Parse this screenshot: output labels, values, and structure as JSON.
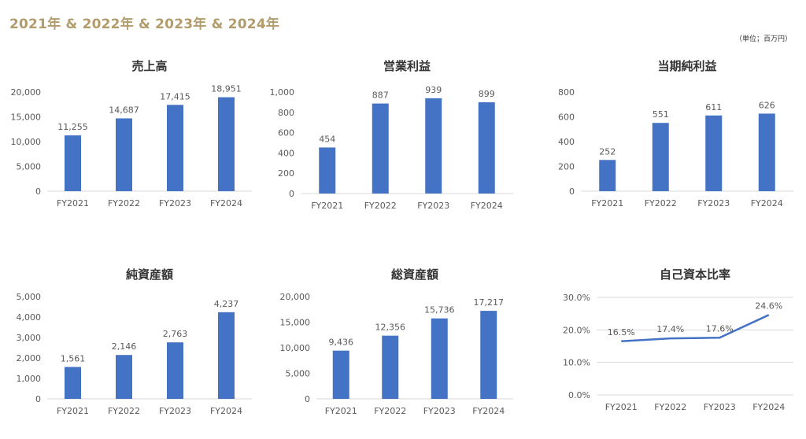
{
  "header": {
    "title": "2021年 & 2022年 & 2023年 & 2024年",
    "unit_note": "（単位；百万円）"
  },
  "colors": {
    "bar": "#4472c4",
    "text": "#595959",
    "grid": "#d9d9d9",
    "title": "#333333",
    "heading": "#b39c6b"
  },
  "chart_data": [
    {
      "type": "bar",
      "title": "売上高",
      "categories": [
        "FY2021",
        "FY2022",
        "FY2023",
        "FY2024"
      ],
      "values": [
        11255,
        14687,
        17415,
        18951
      ],
      "value_labels": [
        "11,255",
        "14,687",
        "17,415",
        "18,951"
      ],
      "ylim": [
        0,
        20000
      ],
      "yticks": [
        "0",
        "5,000",
        "10,000",
        "15,000",
        "20,000"
      ],
      "grid": false
    },
    {
      "type": "bar",
      "title": "営業利益",
      "categories": [
        "FY2021",
        "FY2022",
        "FY2023",
        "FY2024"
      ],
      "values": [
        454,
        887,
        939,
        899
      ],
      "value_labels": [
        "454",
        "887",
        "939",
        "899"
      ],
      "ylim": [
        0,
        1000
      ],
      "yticks": [
        "0",
        "200",
        "400",
        "600",
        "800",
        "1,000"
      ],
      "grid": false
    },
    {
      "type": "bar",
      "title": "当期純利益",
      "categories": [
        "FY2021",
        "FY2022",
        "FY2023",
        "FY2024"
      ],
      "values": [
        252,
        551,
        611,
        626
      ],
      "value_labels": [
        "252",
        "551",
        "611",
        "626"
      ],
      "ylim": [
        0,
        800
      ],
      "yticks": [
        "0",
        "200",
        "400",
        "600",
        "800"
      ],
      "grid": false
    },
    {
      "type": "bar",
      "title": "純資産額",
      "categories": [
        "FY2021",
        "FY2022",
        "FY2023",
        "FY2024"
      ],
      "values": [
        1561,
        2146,
        2763,
        4237
      ],
      "value_labels": [
        "1,561",
        "2,146",
        "2,763",
        "4,237"
      ],
      "ylim": [
        0,
        5000
      ],
      "yticks": [
        "0",
        "1,000",
        "2,000",
        "3,000",
        "4,000",
        "5,000"
      ],
      "grid": false
    },
    {
      "type": "bar",
      "title": "総資産額",
      "categories": [
        "FY2021",
        "FY2022",
        "FY2023",
        "FY2024"
      ],
      "values": [
        9436,
        12356,
        15736,
        17217
      ],
      "value_labels": [
        "9,436",
        "12,356",
        "15,736",
        "17,217"
      ],
      "ylim": [
        0,
        20000
      ],
      "yticks": [
        "0",
        "5,000",
        "10,000",
        "15,000",
        "20,000"
      ],
      "grid": false
    },
    {
      "type": "line",
      "title": "自己資本比率",
      "categories": [
        "FY2021",
        "FY2022",
        "FY2023",
        "FY2024"
      ],
      "values": [
        16.5,
        17.4,
        17.6,
        24.6
      ],
      "value_labels": [
        "16.5%",
        "17.4%",
        "17.6%",
        "24.6%"
      ],
      "ylim": [
        0,
        30
      ],
      "yticks": [
        "0.0%",
        "10.0%",
        "20.0%",
        "30.0%"
      ],
      "grid": true
    }
  ]
}
